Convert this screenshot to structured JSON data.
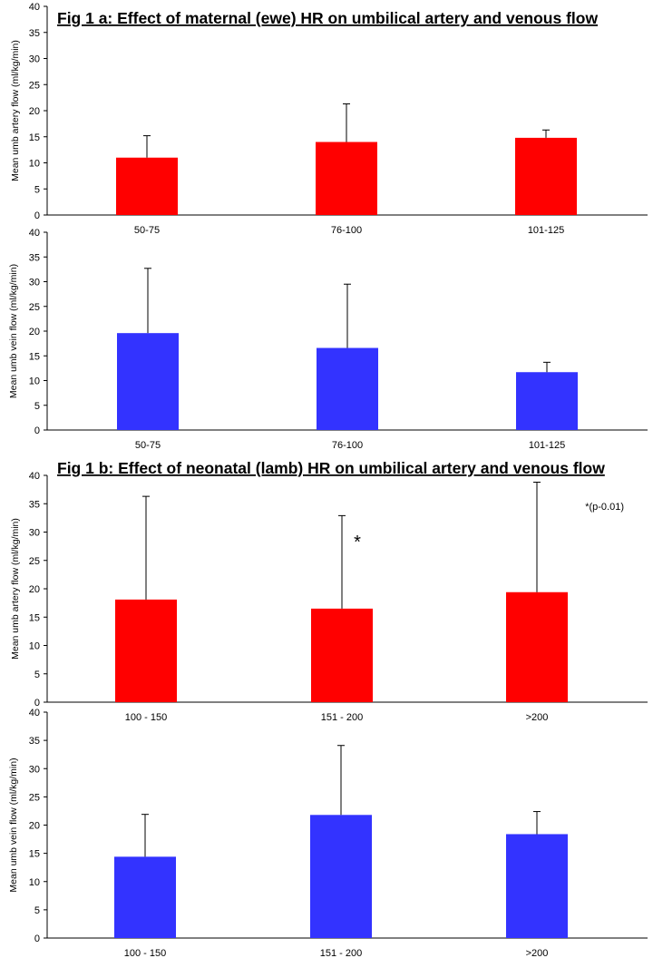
{
  "figure": {
    "title_a": "Fig 1 a: Effect of maternal (ewe) HR on umbilical artery and venous flow",
    "title_b": "Fig 1 b: Effect of neonatal (lamb) HR on umbilical artery and venous flow"
  },
  "chart_data": [
    {
      "type": "bar",
      "title": "",
      "ylabel": "Mean umb artery flow (ml/kg/min)",
      "xlabel": "",
      "categories": [
        "50-75",
        "76-100",
        "101-125"
      ],
      "series": [
        {
          "values": [
            11.0,
            14.0,
            14.8
          ],
          "error": [
            4.2,
            7.3,
            1.5
          ]
        }
      ],
      "ylim": [
        0,
        40
      ],
      "yticks": [
        0,
        5,
        10,
        15,
        20,
        25,
        30,
        35,
        40
      ],
      "color": "#ff0000",
      "grid": false
    },
    {
      "type": "bar",
      "title": "",
      "ylabel": "Mean umb vein flow (ml/kg/min)",
      "xlabel": "",
      "categories": [
        "50-75",
        "76-100",
        "101-125"
      ],
      "series": [
        {
          "values": [
            19.6,
            16.6,
            11.7
          ],
          "error": [
            13.1,
            12.9,
            2.0
          ]
        }
      ],
      "ylim": [
        0,
        40
      ],
      "yticks": [
        0,
        5,
        10,
        15,
        20,
        25,
        30,
        35,
        40
      ],
      "color": "#3333ff",
      "grid": false
    },
    {
      "type": "bar",
      "title": "",
      "ylabel": "Mean umb artery flow (ml/kg/min)",
      "xlabel": "",
      "categories": [
        "100 - 150",
        "151 - 200",
        ">200"
      ],
      "series": [
        {
          "values": [
            18.1,
            16.5,
            19.4
          ],
          "error": [
            18.2,
            16.4,
            19.4
          ]
        }
      ],
      "ylim": [
        0,
        40
      ],
      "yticks": [
        0,
        5,
        10,
        15,
        20,
        25,
        30,
        35,
        40
      ],
      "color": "#ff0000",
      "grid": false,
      "annotations": [
        {
          "text": "*",
          "category": "151 - 200"
        },
        {
          "text": "*(p-0.01)",
          "position": "top-right"
        }
      ]
    },
    {
      "type": "bar",
      "title": "",
      "ylabel": "Mean umb vein flow (ml/kg/min)",
      "xlabel": "",
      "categories": [
        "100 - 150",
        "151 - 200",
        ">200"
      ],
      "series": [
        {
          "values": [
            14.4,
            21.8,
            18.4
          ],
          "error": [
            7.5,
            12.3,
            4.0
          ]
        }
      ],
      "ylim": [
        0,
        40
      ],
      "yticks": [
        0,
        5,
        10,
        15,
        20,
        25,
        30,
        35,
        40
      ],
      "color": "#3333ff",
      "grid": false
    }
  ]
}
